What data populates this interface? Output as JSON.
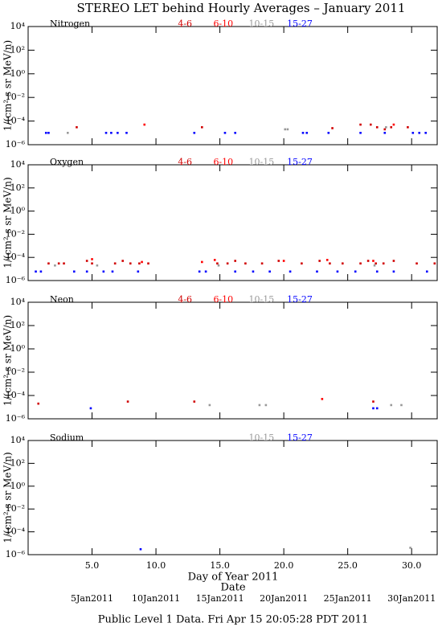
{
  "chart_data": [
    {
      "type": "scatter",
      "title": "STEREO LET behind Hourly Averages – January 2011",
      "label": "Nitrogen",
      "ylabel": "1/(cm² s sr MeV/n)",
      "log_y": true,
      "ylim": [
        1e-06,
        10000
      ],
      "yticks": [
        {
          "value": 10000,
          "label": "10⁴"
        },
        {
          "value": 100,
          "label": "10²"
        },
        {
          "value": 1,
          "label": "10⁰"
        },
        {
          "value": 0.01,
          "label": "10⁻²"
        },
        {
          "value": 0.0001,
          "label": "10⁻⁴"
        },
        {
          "value": 1e-06,
          "label": "10⁻⁶"
        }
      ],
      "series": [
        {
          "name": "4-6",
          "color": "#d00000",
          "x": [
            3.8,
            13.6,
            23.8,
            26.0,
            26.8,
            27.3,
            27.9,
            28.4,
            29.7
          ],
          "values": [
            3e-05,
            3e-05,
            2.5e-05,
            5e-05,
            5e-05,
            3e-05,
            2e-05,
            3e-05,
            3e-05
          ]
        },
        {
          "name": "6-10",
          "color": "#ff0000",
          "x": [
            9.1,
            28.6
          ],
          "values": [
            5e-05,
            5e-05
          ]
        },
        {
          "name": "10-15",
          "color": "#999999",
          "x": [
            3.1,
            20.1,
            20.3,
            28.0
          ],
          "values": [
            1e-05,
            2e-05,
            2e-05,
            3e-05
          ]
        },
        {
          "name": "15-27",
          "color": "#0000ff",
          "x": [
            1.4,
            1.6,
            6.1,
            6.5,
            7.0,
            7.7,
            13.0,
            15.4,
            16.2,
            21.5,
            21.8,
            23.5,
            26.0,
            27.9,
            30.1,
            30.6,
            31.1
          ],
          "values": [
            1e-05,
            1e-05,
            1e-05,
            1e-05,
            1e-05,
            1e-05,
            1e-05,
            1e-05,
            1e-05,
            1e-05,
            1e-05,
            1e-05,
            1e-05,
            1e-05,
            1e-05,
            1e-05,
            1e-05
          ]
        }
      ]
    },
    {
      "type": "scatter",
      "label": "Oxygen",
      "ylabel": "1/(cm² s sr MeV/n)",
      "log_y": true,
      "ylim": [
        1e-06,
        10000
      ],
      "yticks": [
        {
          "value": 10000,
          "label": "10⁴"
        },
        {
          "value": 100,
          "label": "10²"
        },
        {
          "value": 1,
          "label": "10⁰"
        },
        {
          "value": 0.01,
          "label": "10⁻²"
        },
        {
          "value": 0.0001,
          "label": "10⁻⁴"
        },
        {
          "value": 1e-06,
          "label": "10⁻⁶"
        }
      ],
      "series": [
        {
          "name": "4-6",
          "color": "#d00000",
          "x": [
            1.6,
            2.4,
            2.8,
            4.6,
            5.0,
            6.8,
            7.4,
            8.0,
            8.7,
            9.4,
            14.8,
            15.6,
            16.2,
            17.0,
            18.3,
            19.6,
            21.4,
            22.8,
            23.6,
            24.6,
            26.0,
            26.6,
            27.2,
            27.8,
            28.6,
            30.4,
            31.8
          ],
          "values": [
            3e-05,
            3e-05,
            3e-05,
            5e-05,
            3e-05,
            3e-05,
            5e-05,
            3e-05,
            3e-05,
            3e-05,
            3e-05,
            3e-05,
            5e-05,
            3e-05,
            3e-05,
            5e-05,
            3e-05,
            5e-05,
            3e-05,
            3e-05,
            3e-05,
            5e-05,
            3e-05,
            3e-05,
            5e-05,
            3e-05,
            3e-05
          ]
        },
        {
          "name": "6-10",
          "color": "#ff0000",
          "x": [
            5.0,
            8.9,
            13.6,
            14.6,
            20.0,
            23.4,
            27.0
          ],
          "values": [
            7e-05,
            4e-05,
            4e-05,
            6e-05,
            5e-05,
            6e-05,
            5e-05
          ]
        },
        {
          "name": "10-15",
          "color": "#999999",
          "x": [
            2.1,
            5.4,
            14.9,
            27.1
          ],
          "values": [
            2e-05,
            2e-05,
            2e-05,
            2e-05
          ]
        },
        {
          "name": "15-27",
          "color": "#0000ff",
          "x": [
            0.6,
            1.0,
            3.6,
            4.6,
            5.9,
            6.6,
            8.6,
            13.4,
            13.9,
            16.2,
            17.6,
            18.9,
            20.5,
            22.6,
            24.2,
            25.6,
            27.3,
            28.6,
            31.2
          ],
          "values": [
            6e-06,
            6e-06,
            6e-06,
            6e-06,
            6e-06,
            6e-06,
            6e-06,
            6e-06,
            6e-06,
            6e-06,
            6e-06,
            6e-06,
            6e-06,
            6e-06,
            6e-06,
            6e-06,
            6e-06,
            6e-06,
            6e-06
          ]
        }
      ]
    },
    {
      "type": "scatter",
      "label": "Neon",
      "ylabel": "1/(cm² s sr MeV/n)",
      "log_y": true,
      "ylim": [
        1e-06,
        10000
      ],
      "yticks": [
        {
          "value": 10000,
          "label": "10⁴"
        },
        {
          "value": 100,
          "label": "10²"
        },
        {
          "value": 1,
          "label": "10⁰"
        },
        {
          "value": 0.01,
          "label": "10⁻²"
        },
        {
          "value": 0.0001,
          "label": "10⁻⁴"
        },
        {
          "value": 1e-06,
          "label": "10⁻⁶"
        }
      ],
      "series": [
        {
          "name": "4-6",
          "color": "#d00000",
          "x": [
            0.8,
            7.8,
            13.0,
            27.0
          ],
          "values": [
            2e-05,
            3e-05,
            3e-05,
            3e-05
          ]
        },
        {
          "name": "6-10",
          "color": "#ff0000",
          "x": [
            23.0
          ],
          "values": [
            5e-05
          ]
        },
        {
          "name": "10-15",
          "color": "#999999",
          "x": [
            14.2,
            18.1,
            18.6,
            28.4,
            29.2
          ],
          "values": [
            1.5e-05,
            1.5e-05,
            1.5e-05,
            1.5e-05,
            1.5e-05
          ]
        },
        {
          "name": "15-27",
          "color": "#0000ff",
          "x": [
            4.9,
            27.0,
            27.3
          ],
          "values": [
            8e-06,
            8e-06,
            8e-06
          ]
        }
      ]
    },
    {
      "type": "scatter",
      "label": "Sodium",
      "ylabel": "1/(cm² s sr MeV/n)",
      "log_y": true,
      "ylim": [
        1e-06,
        10000
      ],
      "yticks": [
        {
          "value": 10000,
          "label": "10⁴"
        },
        {
          "value": 100,
          "label": "10²"
        },
        {
          "value": 1,
          "label": "10⁰"
        },
        {
          "value": 0.01,
          "label": "10⁻²"
        },
        {
          "value": 0.0001,
          "label": "10⁻⁴"
        },
        {
          "value": 1e-06,
          "label": "10⁻⁶"
        }
      ],
      "series": [
        {
          "name": "10-15",
          "color": "#999999",
          "x": [
            29.9
          ],
          "values": [
            4e-06
          ]
        },
        {
          "name": "15-27",
          "color": "#0000ff",
          "x": [
            8.8
          ],
          "values": [
            3e-06
          ]
        }
      ],
      "xlabel": "Day of Year 2011",
      "xlim": [
        0,
        32
      ],
      "xticks": [
        {
          "value": 5,
          "label": "5.0"
        },
        {
          "value": 10,
          "label": "10.0"
        },
        {
          "value": 15,
          "label": "15.0"
        },
        {
          "value": 20,
          "label": "20.0"
        },
        {
          "value": 25,
          "label": "25.0"
        },
        {
          "value": 30,
          "label": "30.0"
        }
      ],
      "date_label": "Date",
      "date_ticks": [
        {
          "value": 5,
          "label": "5Jan2011"
        },
        {
          "value": 10,
          "label": "10Jan2011"
        },
        {
          "value": 15,
          "label": "15Jan2011"
        },
        {
          "value": 20,
          "label": "20Jan2011"
        },
        {
          "value": 25,
          "label": "25Jan2011"
        },
        {
          "value": 30,
          "label": "30Jan2011"
        }
      ]
    }
  ],
  "footer": "Public Level 1 Data. Fri Apr 15 20:05:28 PDT 2011"
}
